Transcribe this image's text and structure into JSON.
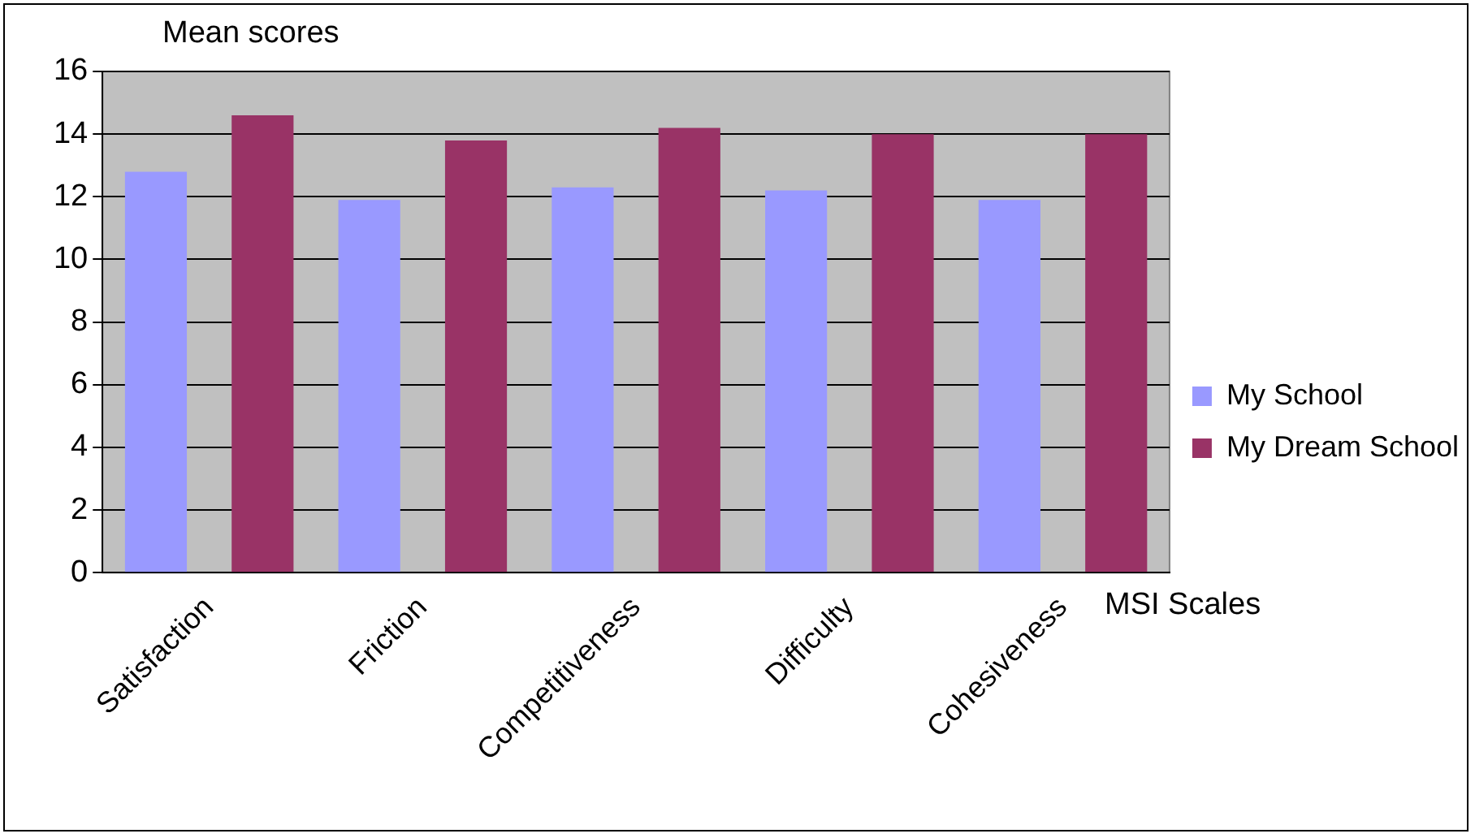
{
  "chart_data": {
    "type": "bar",
    "ylabel": "Mean scores",
    "xlabel": "MSI Scales",
    "categories": [
      "Satisfaction",
      "Friction",
      "Competitiveness",
      "Difficulty",
      "Cohesiveness"
    ],
    "series": [
      {
        "name": "My School",
        "color": "#9999ff",
        "values": [
          12.8,
          11.9,
          12.3,
          12.2,
          11.9
        ]
      },
      {
        "name": "My Dream School",
        "color": "#993366",
        "values": [
          14.6,
          13.8,
          14.2,
          14.0,
          14.0
        ]
      }
    ],
    "ylim": [
      0,
      16
    ],
    "yticks": [
      0,
      2,
      4,
      6,
      8,
      10,
      12,
      14,
      16
    ],
    "grid": "y",
    "legend": "right"
  }
}
